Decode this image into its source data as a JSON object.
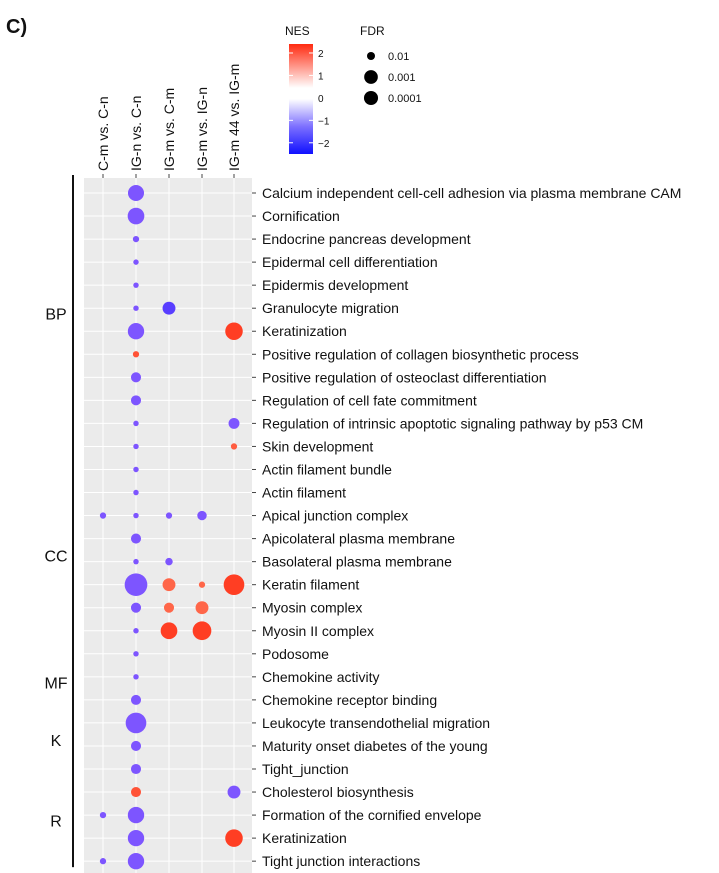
{
  "panel_label": "C)",
  "chart_data": {
    "type": "scatter",
    "columns": [
      "C-m vs. C-n",
      "IG-n vs. C-n",
      "IG-m vs. C-m",
      "IG-m vs. IG-n",
      "IG-m 44 vs. IG-m"
    ],
    "groups": [
      {
        "label": "BP",
        "terms": [
          "Calcium independent cell-cell adhesion via plasma membrane CAM",
          "Cornification",
          "Endocrine pancreas development",
          "Epidermal cell differentiation",
          "Epidermis development",
          "Granulocyte migration",
          "Keratinization",
          "Positive regulation of collagen biosynthetic process",
          "Positive regulation of osteoclast differentiation",
          "Regulation of cell fate commitment",
          "Regulation of intrinsic apoptotic signaling pathway by p53 CM",
          "Skin development"
        ]
      },
      {
        "label": "CC",
        "terms": [
          "Actin filament bundle",
          "Actin filament",
          "Apical junction complex",
          "Apicolateral plasma membrane",
          "Basolateral plasma membrane",
          "Keratin filament",
          "Myosin complex",
          "Myosin II complex",
          "Podosome"
        ]
      },
      {
        "label": "MF",
        "terms": [
          "Chemokine activity",
          "Chemokine receptor binding"
        ]
      },
      {
        "label": "K",
        "terms": [
          "Leukocyte transendothelial migration",
          "Maturity onset diabetes of the young",
          "Tight_junction"
        ]
      },
      {
        "label": "R",
        "terms": [
          "Cholesterol biosynthesis",
          "Formation of the cornified envelope",
          "Keratinization",
          "Tight junction interactions"
        ]
      }
    ],
    "points": [
      {
        "row": 0,
        "col": 1,
        "nes": -1.3,
        "fdr": 0.001
      },
      {
        "row": 1,
        "col": 1,
        "nes": -1.3,
        "fdr": 0.0008
      },
      {
        "row": 2,
        "col": 1,
        "nes": -1.3,
        "fdr": 0.03
      },
      {
        "row": 3,
        "col": 1,
        "nes": -1.3,
        "fdr": 0.04
      },
      {
        "row": 4,
        "col": 1,
        "nes": -1.3,
        "fdr": 0.04
      },
      {
        "row": 5,
        "col": 1,
        "nes": -1.3,
        "fdr": 0.04
      },
      {
        "row": 5,
        "col": 2,
        "nes": -1.9,
        "fdr": 0.003
      },
      {
        "row": 6,
        "col": 1,
        "nes": -1.3,
        "fdr": 0.0009
      },
      {
        "row": 6,
        "col": 4,
        "nes": 1.8,
        "fdr": 0.0006
      },
      {
        "row": 7,
        "col": 1,
        "nes": 1.6,
        "fdr": 0.03
      },
      {
        "row": 8,
        "col": 1,
        "nes": -1.3,
        "fdr": 0.008
      },
      {
        "row": 9,
        "col": 1,
        "nes": -1.3,
        "fdr": 0.008
      },
      {
        "row": 10,
        "col": 1,
        "nes": -1.3,
        "fdr": 0.04
      },
      {
        "row": 10,
        "col": 4,
        "nes": -1.3,
        "fdr": 0.006
      },
      {
        "row": 11,
        "col": 1,
        "nes": -1.3,
        "fdr": 0.04
      },
      {
        "row": 11,
        "col": 4,
        "nes": 1.5,
        "fdr": 0.03
      },
      {
        "row": 12,
        "col": 1,
        "nes": -1.3,
        "fdr": 0.04
      },
      {
        "row": 13,
        "col": 1,
        "nes": -1.3,
        "fdr": 0.04
      },
      {
        "row": 14,
        "col": 0,
        "nes": -1.3,
        "fdr": 0.03
      },
      {
        "row": 14,
        "col": 1,
        "nes": -1.3,
        "fdr": 0.04
      },
      {
        "row": 14,
        "col": 2,
        "nes": -1.3,
        "fdr": 0.03
      },
      {
        "row": 14,
        "col": 3,
        "nes": -1.3,
        "fdr": 0.01
      },
      {
        "row": 15,
        "col": 1,
        "nes": -1.3,
        "fdr": 0.008
      },
      {
        "row": 16,
        "col": 1,
        "nes": -1.3,
        "fdr": 0.04
      },
      {
        "row": 16,
        "col": 2,
        "nes": -1.3,
        "fdr": 0.02
      },
      {
        "row": 17,
        "col": 1,
        "nes": -1.3,
        "fdr": 0.0001
      },
      {
        "row": 17,
        "col": 2,
        "nes": 1.4,
        "fdr": 0.003
      },
      {
        "row": 17,
        "col": 3,
        "nes": 1.4,
        "fdr": 0.03
      },
      {
        "row": 17,
        "col": 4,
        "nes": 1.8,
        "fdr": 0.0002
      },
      {
        "row": 18,
        "col": 1,
        "nes": -1.3,
        "fdr": 0.008
      },
      {
        "row": 18,
        "col": 2,
        "nes": 1.4,
        "fdr": 0.008
      },
      {
        "row": 18,
        "col": 3,
        "nes": 1.4,
        "fdr": 0.003
      },
      {
        "row": 19,
        "col": 1,
        "nes": -1.3,
        "fdr": 0.04
      },
      {
        "row": 19,
        "col": 2,
        "nes": 1.8,
        "fdr": 0.0008
      },
      {
        "row": 19,
        "col": 3,
        "nes": 1.8,
        "fdr": 0.0004
      },
      {
        "row": 20,
        "col": 1,
        "nes": -1.3,
        "fdr": 0.04
      },
      {
        "row": 21,
        "col": 1,
        "nes": -1.3,
        "fdr": 0.04
      },
      {
        "row": 22,
        "col": 1,
        "nes": -1.3,
        "fdr": 0.008
      },
      {
        "row": 23,
        "col": 1,
        "nes": -1.3,
        "fdr": 0.0002
      },
      {
        "row": 24,
        "col": 1,
        "nes": -1.3,
        "fdr": 0.008
      },
      {
        "row": 25,
        "col": 1,
        "nes": -1.3,
        "fdr": 0.008
      },
      {
        "row": 26,
        "col": 1,
        "nes": 1.6,
        "fdr": 0.008
      },
      {
        "row": 26,
        "col": 4,
        "nes": -1.3,
        "fdr": 0.003
      },
      {
        "row": 27,
        "col": 0,
        "nes": -1.3,
        "fdr": 0.03
      },
      {
        "row": 27,
        "col": 1,
        "nes": -1.3,
        "fdr": 0.0009
      },
      {
        "row": 28,
        "col": 1,
        "nes": -1.3,
        "fdr": 0.0009
      },
      {
        "row": 28,
        "col": 4,
        "nes": 1.8,
        "fdr": 0.0006
      },
      {
        "row": 29,
        "col": 0,
        "nes": -1.3,
        "fdr": 0.03
      },
      {
        "row": 29,
        "col": 1,
        "nes": -1.3,
        "fdr": 0.0009
      }
    ],
    "color_legend": {
      "title": "NES",
      "ticks": [
        "2",
        "1",
        "0",
        "−1",
        "−2"
      ],
      "range": [
        -2.5,
        2.4
      ],
      "colors": {
        "low": "#1010ff",
        "mid": "#ffffff",
        "high": "#ff2a10",
        "dot_low": "#7d55ff"
      }
    },
    "size_legend": {
      "title": "FDR",
      "entries": [
        {
          "label": "0.01",
          "fdr": 0.01
        },
        {
          "label": "0.001",
          "fdr": 0.001
        },
        {
          "label": "0.0001",
          "fdr": 0.0001
        }
      ]
    },
    "panel_background": "#ebebeb",
    "grid": true
  }
}
